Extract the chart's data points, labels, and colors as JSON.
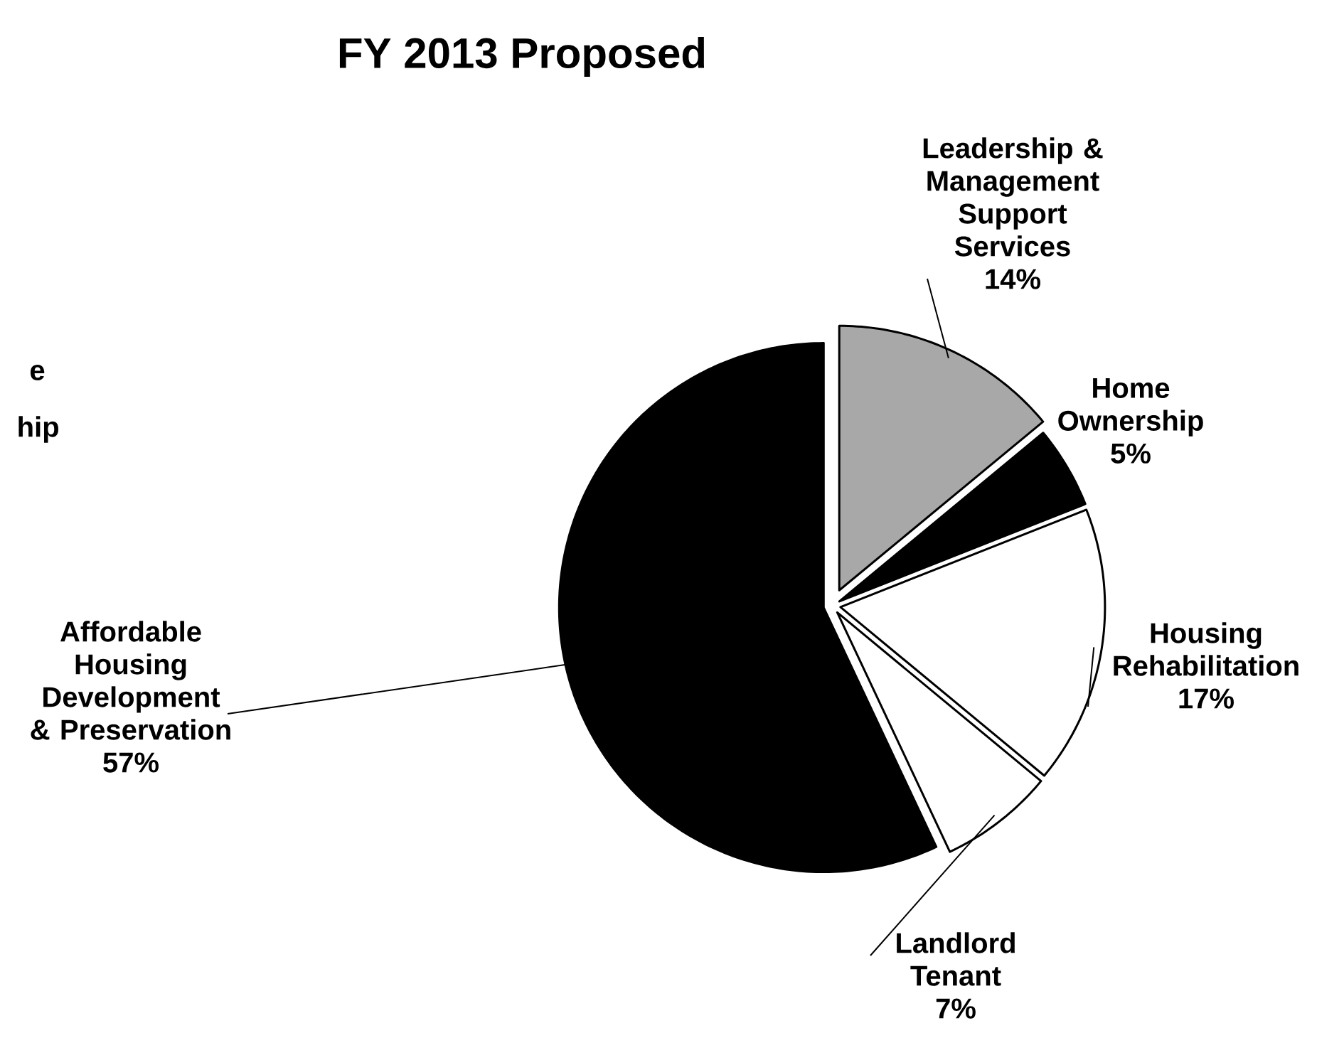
{
  "chart_data": {
    "type": "pie",
    "title": "FY 2013 Proposed",
    "categories": [
      "Leadership & Management Support Services",
      "Home Ownership",
      "Housing Rehabilitation",
      "Landlord Tenant",
      "Affordable Housing Development & Preservation"
    ],
    "values": [
      14,
      5,
      17,
      7,
      57
    ],
    "value_labels": [
      "14%",
      "5%",
      "17%",
      "7%",
      "57%"
    ],
    "colors": [
      "#a8a8a8",
      "#000000",
      "#ffffff",
      "#ffffff",
      "#000000"
    ],
    "annotations": [
      "e",
      "hip"
    ]
  }
}
